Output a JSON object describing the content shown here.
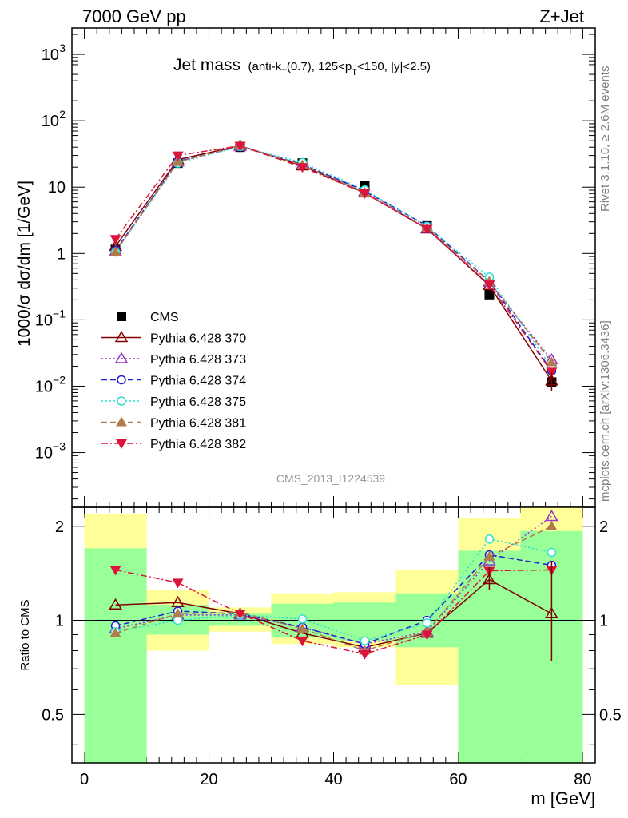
{
  "header": {
    "left": "7000 GeV pp",
    "right": "Z+Jet",
    "plot_title": "Jet mass",
    "plot_title_suffix": "(anti-k_T(0.7), 125<p_T<150, |y|<2.5)",
    "analysis_id": "CMS_2013_I1224539",
    "side_top": "Rivet 3.1.10, ≥ 2.6M events",
    "side_bottom": "mcplots.cern.ch [arXiv:1306.3436]"
  },
  "chart_data": [
    {
      "type": "line",
      "title": "Jet mass (anti-kT(0.7), 125<pT<150, |y|<2.5)",
      "ylabel": "1000/σ dσ/dm [1/GeV]",
      "xlabel": "m [GeV]",
      "yscale": "log",
      "xlim": [
        -2,
        82
      ],
      "ylim": [
        0.00015,
        2500
      ],
      "x_ticks": [
        "0",
        "20",
        "40",
        "60",
        "80"
      ],
      "y_tick_labels": [
        "10^{3}",
        "10^{2}",
        "10",
        "1",
        "10^{-1}",
        "10^{-2}",
        "10^{-3}"
      ],
      "x": [
        5,
        15,
        25,
        35,
        45,
        55,
        65,
        75
      ],
      "legend_position": "left-center",
      "series": [
        {
          "name": "CMS",
          "color": "#000000",
          "marker": "square",
          "line": "none",
          "values": [
            1.15,
            23,
            40,
            23,
            10.5,
            2.6,
            0.24,
            0.0115
          ]
        },
        {
          "name": "Pythia 6.428 370",
          "color": "#800000",
          "marker": "triangle-open",
          "line": "solid",
          "values": [
            1.28,
            26,
            42,
            21,
            8.2,
            2.35,
            0.33,
            0.012
          ]
        },
        {
          "name": "Pythia 6.428 373",
          "color": "#9932cc",
          "marker": "triangle-open",
          "line": "dotted",
          "values": [
            1.08,
            24,
            41,
            22,
            8.6,
            2.4,
            0.37,
            0.025
          ]
        },
        {
          "name": "Pythia 6.428 374",
          "color": "#1f1fd0",
          "marker": "circle-open",
          "line": "dashed",
          "values": [
            1.1,
            24.5,
            41,
            22,
            8.8,
            2.6,
            0.38,
            0.017
          ]
        },
        {
          "name": "Pythia 6.428 375",
          "color": "#2ae0d0",
          "marker": "circle-open",
          "line": "dotted",
          "values": [
            1.05,
            23,
            41,
            23.5,
            9.1,
            2.55,
            0.44,
            0.019
          ]
        },
        {
          "name": "Pythia 6.428 381",
          "color": "#b07c4a",
          "marker": "triangle",
          "line": "dashed",
          "values": [
            1.05,
            24,
            42,
            21.5,
            8.3,
            2.4,
            0.38,
            0.023
          ]
        },
        {
          "name": "Pythia 6.428 382",
          "color": "#dc143c",
          "marker": "triangle-down",
          "line": "dashdot",
          "values": [
            1.65,
            30,
            42,
            20,
            8.1,
            2.35,
            0.34,
            0.0165
          ]
        }
      ]
    },
    {
      "type": "line",
      "ylabel": "Ratio to CMS",
      "xlabel": "m [GeV]",
      "yscale": "log",
      "ylim": [
        0.35,
        2.3
      ],
      "y_ticks": [
        "0.5",
        "1",
        "2"
      ],
      "x": [
        5,
        15,
        25,
        35,
        45,
        55,
        65,
        75
      ],
      "reference_line": 1,
      "bands": {
        "bin_edges": [
          0,
          10,
          20,
          30,
          40,
          50,
          60,
          70,
          80
        ],
        "stat_green": [
          [
            0.35,
            1.7
          ],
          [
            0.9,
            1.12
          ],
          [
            0.96,
            1.05
          ],
          [
            0.88,
            1.13
          ],
          [
            0.86,
            1.14
          ],
          [
            0.82,
            1.22
          ],
          [
            0.35,
            1.67
          ],
          [
            0.35,
            1.93
          ]
        ],
        "total_yellow": [
          [
            0.35,
            2.18
          ],
          [
            0.8,
            1.25
          ],
          [
            0.92,
            1.1
          ],
          [
            0.84,
            1.22
          ],
          [
            0.82,
            1.23
          ],
          [
            0.62,
            1.45
          ],
          [
            0.37,
            2.13
          ],
          [
            0.35,
            2.3
          ]
        ]
      },
      "series": [
        {
          "name": "Pythia 6.428 370",
          "values": [
            1.12,
            1.14,
            1.05,
            0.91,
            0.82,
            0.91,
            1.35,
            1.05
          ]
        },
        {
          "name": "Pythia 6.428 373",
          "values": [
            0.94,
            1.04,
            1.04,
            0.95,
            0.84,
            0.92,
            1.55,
            2.15
          ]
        },
        {
          "name": "Pythia 6.428 374",
          "values": [
            0.96,
            1.07,
            1.05,
            0.95,
            0.84,
            1.0,
            1.62,
            1.5
          ]
        },
        {
          "name": "Pythia 6.428 375",
          "values": [
            0.92,
            1.0,
            1.04,
            1.01,
            0.86,
            0.98,
            1.82,
            1.65
          ]
        },
        {
          "name": "Pythia 6.428 381",
          "values": [
            0.91,
            1.05,
            1.06,
            0.94,
            0.8,
            0.92,
            1.6,
            2.0
          ]
        },
        {
          "name": "Pythia 6.428 382",
          "values": [
            1.45,
            1.32,
            1.05,
            0.86,
            0.78,
            0.9,
            1.44,
            1.45
          ]
        }
      ]
    }
  ]
}
